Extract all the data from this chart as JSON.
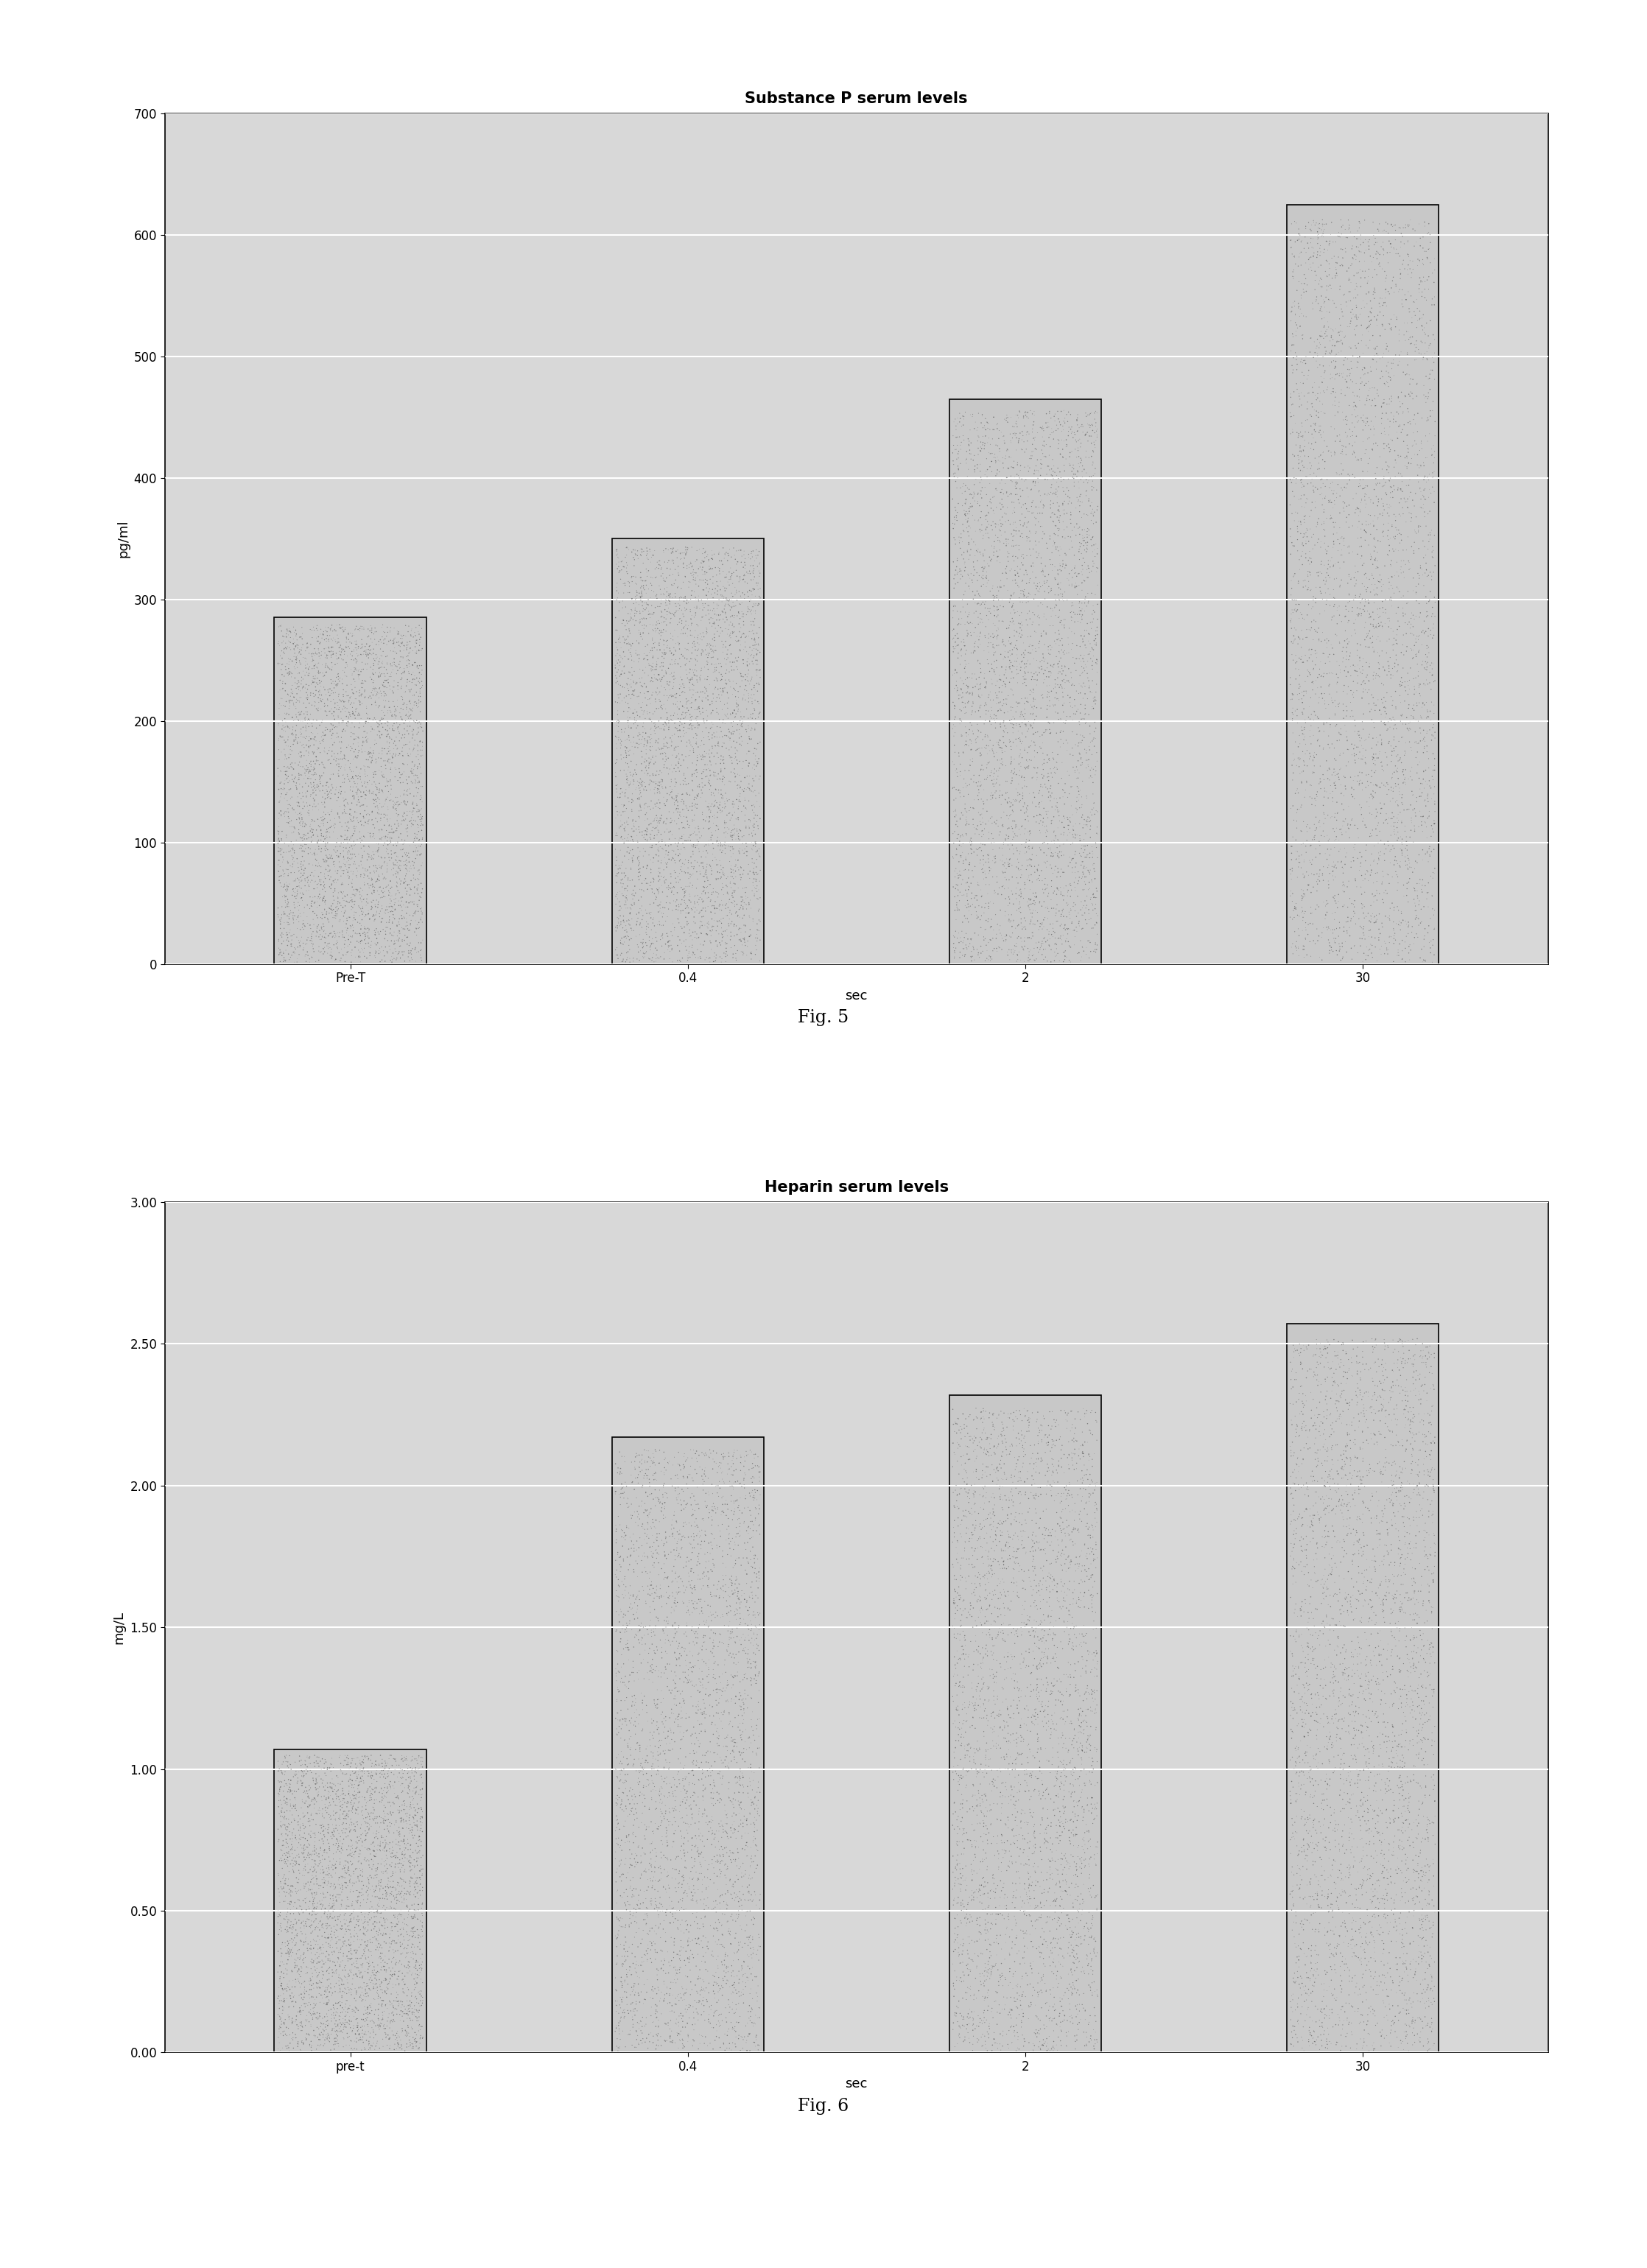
{
  "fig5": {
    "title": "Substance P serum levels",
    "categories": [
      "Pre-T",
      "0.4",
      "2",
      "30"
    ],
    "values": [
      285,
      350,
      465,
      625
    ],
    "ylabel": "pg/ml",
    "xlabel": "sec",
    "ylim": [
      0,
      700
    ],
    "yticks": [
      0,
      100,
      200,
      300,
      400,
      500,
      600,
      700
    ],
    "ytick_labels": [
      "0",
      "100",
      "200",
      "300",
      "400",
      "500",
      "600",
      "700"
    ],
    "fig_label": "Fig. 5"
  },
  "fig6": {
    "title": "Heparin serum levels",
    "categories": [
      "pre-t",
      "0.4",
      "2",
      "30"
    ],
    "values": [
      1.07,
      2.17,
      2.32,
      2.57
    ],
    "ylabel": "mg/L",
    "xlabel": "sec",
    "ylim": [
      0.0,
      3.0
    ],
    "yticks": [
      0.0,
      0.5,
      1.0,
      1.5,
      2.0,
      2.5,
      3.0
    ],
    "ytick_labels": [
      "0.00",
      "0.50",
      "1.00",
      "1.50",
      "2.00",
      "2.50",
      "3.00"
    ],
    "fig_label": "Fig. 6"
  },
  "bar_base_color": "#c8c8c8",
  "bar_edgecolor": "#000000",
  "background_color": "#ffffff",
  "plot_bg_color": "#d8d8d8",
  "grid_color": "#ffffff",
  "title_fontsize": 15,
  "label_fontsize": 13,
  "tick_fontsize": 12,
  "fig_label_fontsize": 17
}
